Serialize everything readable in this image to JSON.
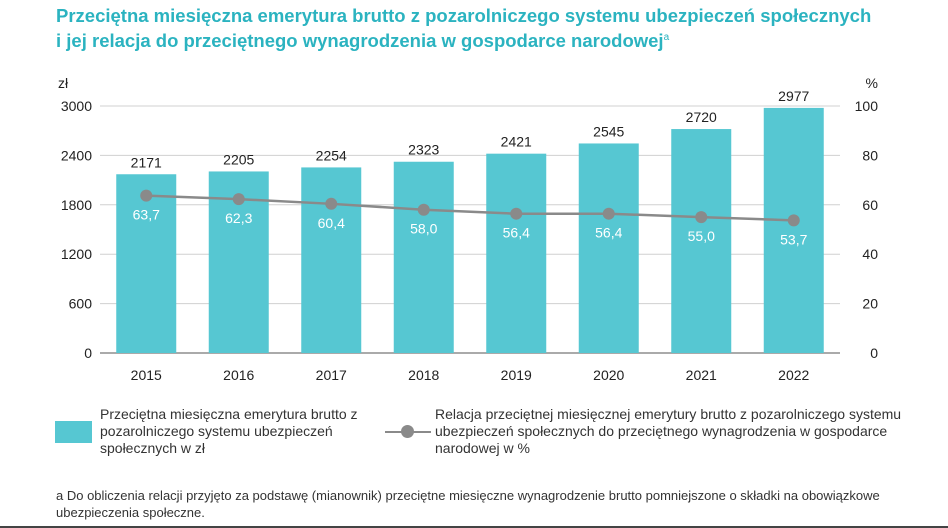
{
  "title_line1": "Przeciętna miesięczna emerytura brutto z pozarolniczego systemu ubezpieczeń społecznych",
  "title_line2": "i jej relacja do przeciętnego wynagrodzenia w gospodarce narodowej",
  "title_note_mark": "a",
  "colors": {
    "bar": "#56c7d2",
    "line": "#8a8a8a",
    "title": "#2bb3c0"
  },
  "chart_data": {
    "type": "bar",
    "categories": [
      "2015",
      "2016",
      "2017",
      "2018",
      "2019",
      "2020",
      "2021",
      "2022"
    ],
    "series": [
      {
        "name": "Przeciętna miesięczna emerytura brutto z pozarolniczego systemu ubezpieczeń społecznych w zł",
        "type": "bar",
        "axis": "left",
        "values": [
          2171,
          2205,
          2254,
          2323,
          2421,
          2545,
          2720,
          2977
        ],
        "labels": [
          "2171",
          "2205",
          "2254",
          "2323",
          "2421",
          "2545",
          "2720",
          "2977"
        ]
      },
      {
        "name": "Relacja przeciętnej miesięcznej emerytury brutto z pozarolniczego systemu ubezpieczeń społecznych do przeciętnego wynagrodzenia w gospodarce narodowej w %",
        "type": "line",
        "axis": "right",
        "values": [
          63.7,
          62.3,
          60.4,
          58.0,
          56.4,
          56.4,
          55.0,
          53.7
        ],
        "labels": [
          "63,7",
          "62,3",
          "60,4",
          "58,0",
          "56,4",
          "56,4",
          "55,0",
          "53,7"
        ]
      }
    ],
    "y_left": {
      "unit": "zł",
      "ylim": [
        0,
        3000
      ],
      "ticks": [
        "0",
        "600",
        "1200",
        "1800",
        "2400",
        "3000"
      ]
    },
    "y_right": {
      "unit": "%",
      "ylim": [
        0,
        100
      ],
      "ticks": [
        "0",
        "20",
        "40",
        "60",
        "80",
        "100"
      ]
    },
    "grid": true,
    "legend_position": "bottom"
  },
  "legend": {
    "bar_label": "Przeciętna miesięczna emerytura brutto z pozarolniczego systemu ubezpieczeń społecznych w zł",
    "line_label": "Relacja przeciętnej miesięcznej emerytury brutto z pozarolniczego systemu ubezpieczeń społecznych do przeciętnego wynagrodzenia w gospodarce narodowej w %"
  },
  "footnote": "a Do obliczenia relacji przyjęto za podstawę (mianownik) przeciętne miesięczne wynagrodzenie brutto pomniejszone o składki na obowiązkowe ubezpieczenia społeczne."
}
